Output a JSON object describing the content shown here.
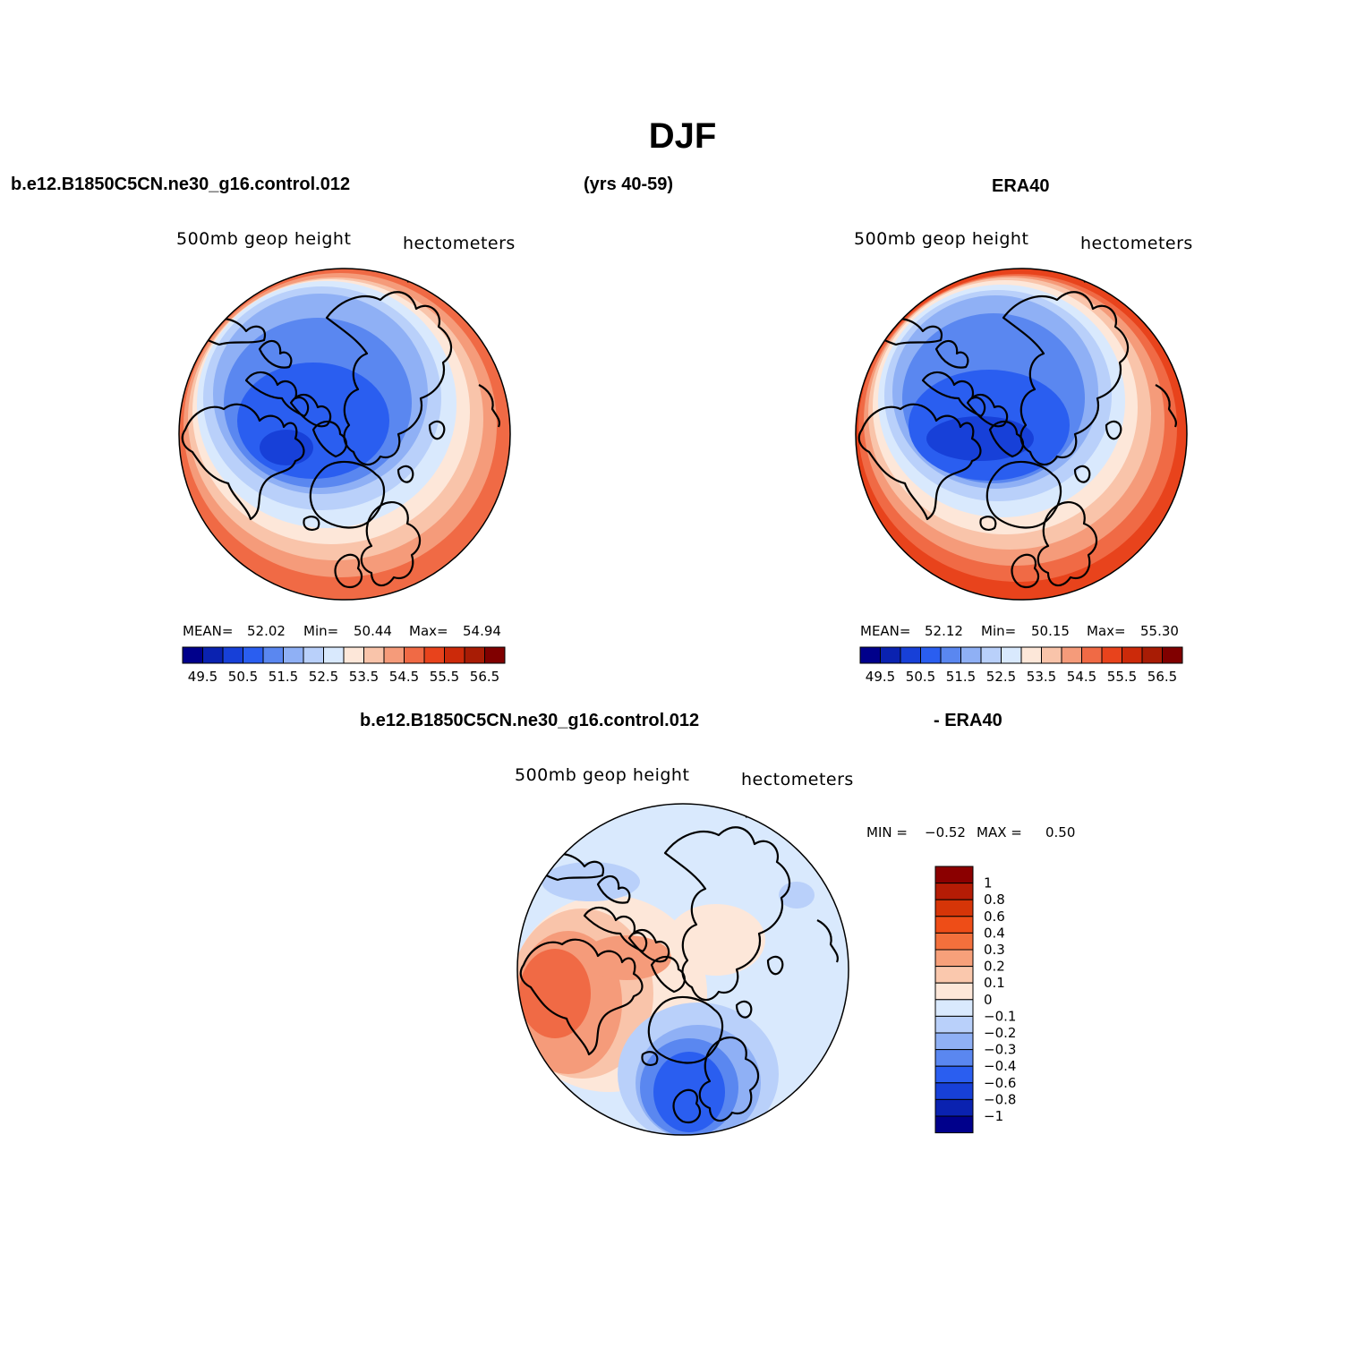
{
  "title": "DJF",
  "header": {
    "case_name": "b.e12.B1850C5CN.ne30_g16.control.012",
    "years": "(yrs 40-59)",
    "obs_name": "ERA40",
    "diff_case": "b.e12.B1850C5CN.ne30_g16.control.012",
    "diff_obs": "- ERA40"
  },
  "panels": {
    "model": {
      "left_label": "500mb geop height",
      "right_label": "hectometers",
      "mean_label": "MEAN=",
      "mean": "52.02",
      "min_label": "Min=",
      "min": "50.44",
      "max_label": "Max=",
      "max": "54.94"
    },
    "obs": {
      "left_label": "500mb geop height",
      "right_label": "hectometers",
      "mean_label": "MEAN=",
      "mean": "52.12",
      "min_label": "Min=",
      "min": "50.15",
      "max_label": "Max=",
      "max": "55.30"
    },
    "diff": {
      "left_label": "500mb geop height",
      "right_label": "hectometers",
      "min_label": "MIN =",
      "min": "−0.52",
      "max_label": "MAX =",
      "max": "0.50"
    }
  },
  "colorbar_abs": {
    "tick_labels": [
      "49.5",
      "50.5",
      "51.5",
      "52.5",
      "53.5",
      "54.5",
      "55.5",
      "56.5"
    ],
    "colors": [
      "#00008b",
      "#0a22b0",
      "#1740d8",
      "#2a5ef0",
      "#5a87f0",
      "#8fb0f5",
      "#b9d0fa",
      "#d9e9fd",
      "#fde7d9",
      "#f9c4aa",
      "#f59b7a",
      "#f06a45",
      "#e8431c",
      "#cc2a0a",
      "#a81c05",
      "#800000"
    ]
  },
  "colorbar_diff": {
    "labels": [
      "1",
      "0.8",
      "0.6",
      "0.4",
      "0.3",
      "0.2",
      "0.1",
      "0",
      "−0.1",
      "−0.2",
      "−0.3",
      "−0.4",
      "−0.6",
      "−0.8",
      "−1"
    ],
    "colors": [
      "#8b0000",
      "#b51c05",
      "#d63508",
      "#ee4d17",
      "#f3703c",
      "#f7a07a",
      "#fac8ad",
      "#fde7d9",
      "#d9e9fd",
      "#b9d0fa",
      "#8fb0f5",
      "#5a87f0",
      "#2a5ef0",
      "#1740d8",
      "#0a22b0",
      "#00008b"
    ]
  }
}
